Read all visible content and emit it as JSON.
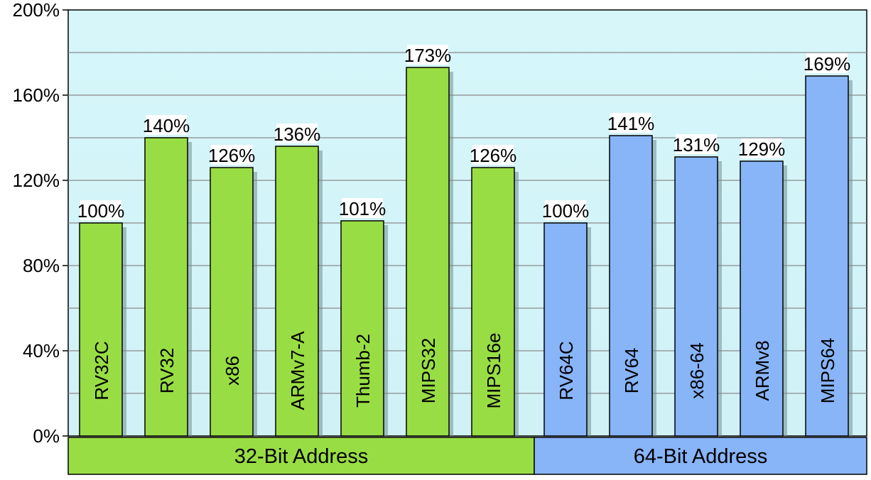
{
  "chart_data": {
    "type": "bar",
    "ylim": [
      0,
      200
    ],
    "yticks": [
      0,
      40,
      80,
      120,
      160,
      200
    ],
    "ytick_labels": [
      "0%",
      "40%",
      "80%",
      "120%",
      "160%",
      "200%"
    ],
    "grid": true,
    "groups": [
      {
        "name": "32-Bit Address",
        "bar_color": "#99DD44",
        "band_color": "#99DD44",
        "categories": [
          "RV32C",
          "RV32",
          "x86",
          "ARMv7-A",
          "Thumb-2",
          "MIPS32",
          "MIPS16e"
        ],
        "values": [
          100,
          140,
          126,
          136,
          101,
          173,
          126
        ],
        "labels": [
          "100%",
          "140%",
          "126%",
          "136%",
          "101%",
          "173%",
          "126%"
        ]
      },
      {
        "name": "64-Bit Address",
        "bar_color": "#88B4F8",
        "band_color": "#88B4F8",
        "categories": [
          "RV64C",
          "RV64",
          "x86-64",
          "ARMv8",
          "MIPS64"
        ],
        "values": [
          100,
          141,
          131,
          129,
          169
        ],
        "labels": [
          "100%",
          "141%",
          "131%",
          "129%",
          "169%"
        ]
      }
    ],
    "colors": {
      "plot_background": "#D6F6FA",
      "gridline": "#8a8a8a"
    }
  }
}
